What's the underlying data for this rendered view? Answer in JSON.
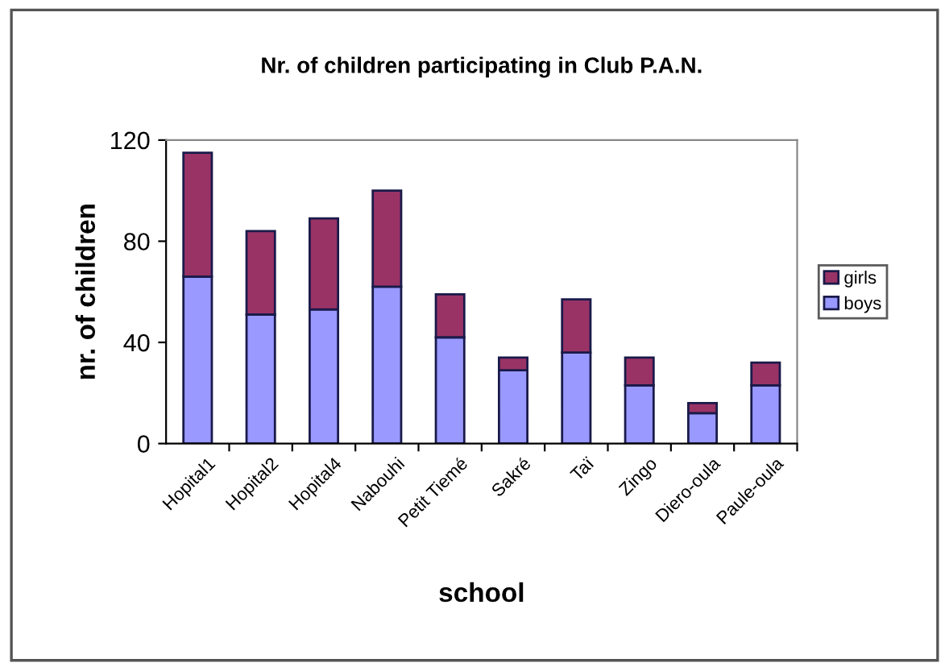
{
  "chart_data": {
    "type": "bar",
    "title": "Nr. of children participating in Club P.A.N.",
    "xlabel": "school",
    "ylabel": "nr. of children",
    "categories": [
      "Hopital1",
      "Hopital2",
      "Hopital4",
      "Nabouhi",
      "Petit Tiemé",
      "Sakré",
      "Taï",
      "Zingo",
      "Diero-oula",
      "Paule-oula"
    ],
    "stacked": true,
    "series": [
      {
        "name": "boys",
        "color": "#9999ff",
        "values": [
          66,
          51,
          53,
          62,
          42,
          29,
          36,
          23,
          12,
          23
        ]
      },
      {
        "name": "girls",
        "color": "#993366",
        "values": [
          49,
          33,
          36,
          38,
          17,
          5,
          21,
          11,
          4,
          9
        ]
      }
    ],
    "ylim": [
      0,
      120
    ],
    "yticks": [
      0,
      40,
      80,
      120
    ],
    "grid": false,
    "legend": "right"
  }
}
